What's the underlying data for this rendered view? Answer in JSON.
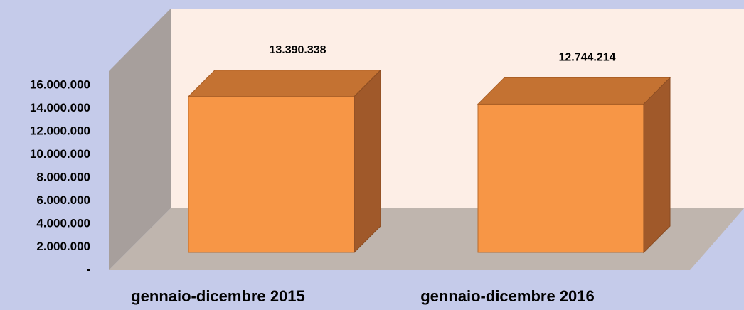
{
  "chart_data": {
    "type": "bar3d",
    "categories": [
      "gennaio-dicembre 2015",
      "gennaio-dicembre 2016"
    ],
    "values": [
      13390338,
      12744214
    ],
    "value_labels": [
      "13.390.338",
      "12.744.214"
    ],
    "color": "#f79646",
    "ylim": [
      0,
      16000000
    ],
    "yticks": [
      {
        "value": 0,
        "label": "-"
      },
      {
        "value": 2000000,
        "label": "2.000.000"
      },
      {
        "value": 4000000,
        "label": "4.000.000"
      },
      {
        "value": 6000000,
        "label": "6.000.000"
      },
      {
        "value": 8000000,
        "label": "8.000.000"
      },
      {
        "value": 10000000,
        "label": "10.000.000"
      },
      {
        "value": 12000000,
        "label": "12.000.000"
      },
      {
        "value": 14000000,
        "label": "14.000.000"
      },
      {
        "value": 16000000,
        "label": "16.000.000"
      }
    ]
  }
}
